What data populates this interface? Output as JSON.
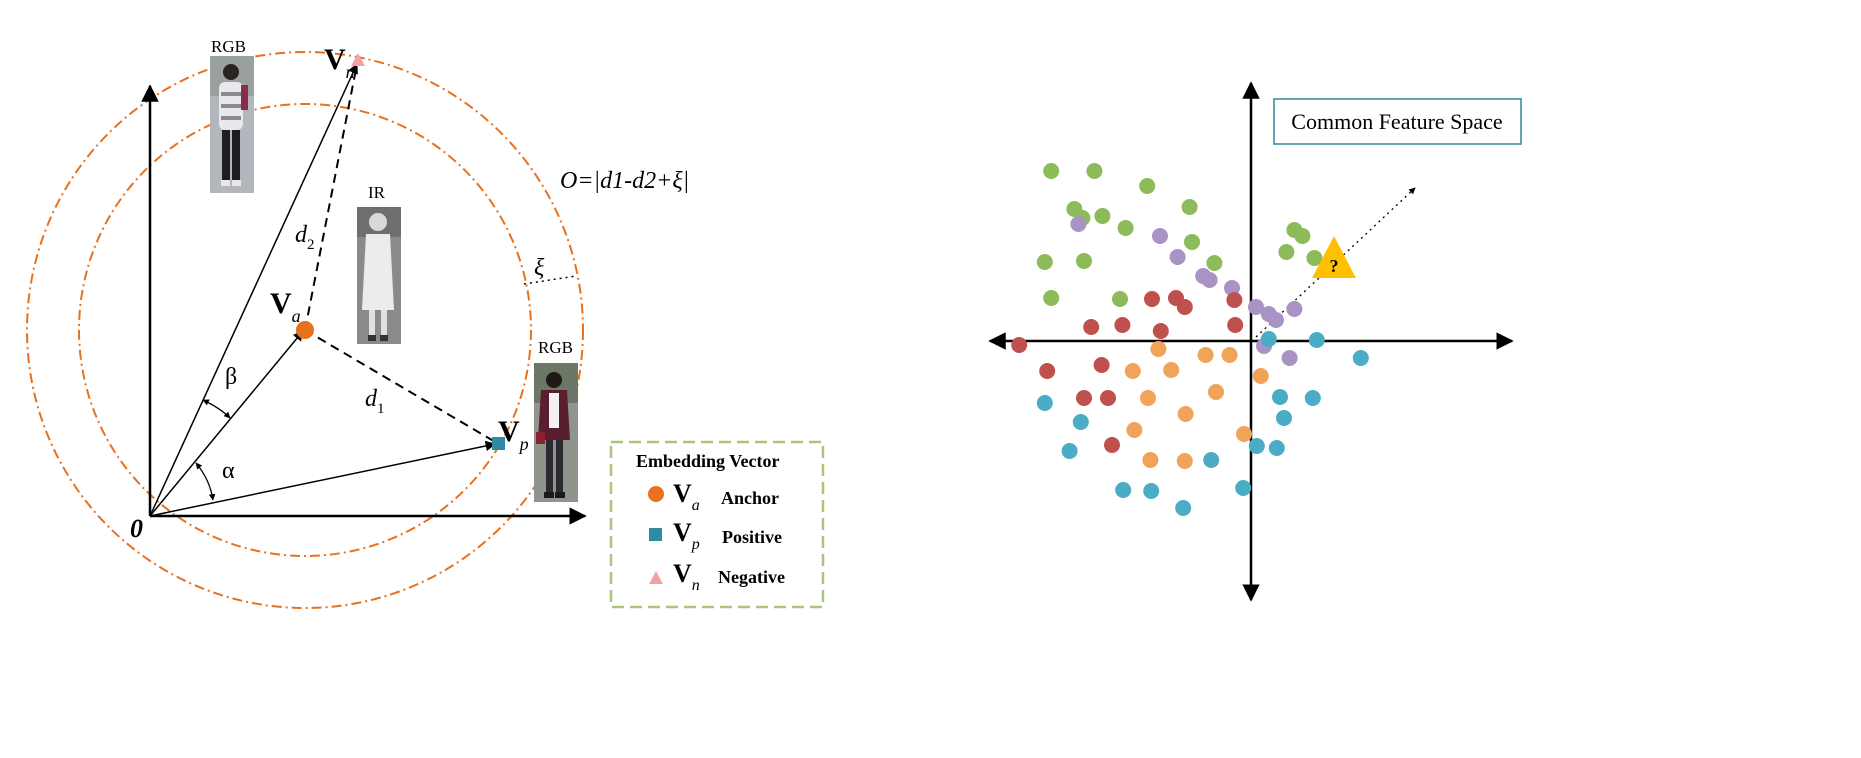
{
  "left_diagram": {
    "origin_label": "0",
    "angle_alpha": "α",
    "angle_beta": "β",
    "vec_anchor": {
      "main": "V",
      "sub": "a"
    },
    "vec_positive": {
      "main": "V",
      "sub": "p"
    },
    "vec_negative": {
      "main": "V",
      "sub": "n"
    },
    "dist_1": {
      "main": "d",
      "sub": "1"
    },
    "dist_2": {
      "main": "d",
      "sub": "2"
    },
    "margin_symbol": "ξ",
    "formula": "O=|d1-d2+ξ|",
    "photo_labels": {
      "rgb_top": "RGB",
      "ir": "IR",
      "rgb_right": "RGB"
    },
    "legend": {
      "title": "Embedding Vector",
      "items": [
        {
          "symbol": "V",
          "sub": "a",
          "label": "Anchor",
          "color": "#E8711E",
          "shape": "circle"
        },
        {
          "symbol": "V",
          "sub": "p",
          "label": "Positive",
          "color": "#2E8BA6",
          "shape": "square"
        },
        {
          "symbol": "V",
          "sub": "n",
          "label": "Negative",
          "color": "#F4A0A8",
          "shape": "triangle"
        }
      ]
    },
    "colors": {
      "circle": "#E8711E",
      "legend_border": "#A9C77A"
    }
  },
  "right_diagram": {
    "title": "Common Feature Space",
    "query_symbol": "?",
    "colors": {
      "green": "#8DBB5A",
      "purple": "#A893C4",
      "red": "#C0504D",
      "orange": "#F1A35A",
      "blue": "#4BACC6",
      "query": "#FFC000",
      "title_border": "#31859C"
    },
    "clusters": {
      "green": [
        [
          1314,
          171
        ],
        [
          1368,
          171
        ],
        [
          1434,
          186
        ],
        [
          1343,
          209
        ],
        [
          1378,
          216
        ],
        [
          1487,
          207
        ],
        [
          1353,
          218
        ],
        [
          1407,
          228
        ],
        [
          1490,
          242
        ],
        [
          1518,
          263
        ],
        [
          1306,
          262
        ],
        [
          1355,
          261
        ],
        [
          1314,
          298
        ],
        [
          1400,
          299
        ],
        [
          1628,
          236
        ],
        [
          1608,
          252
        ],
        [
          1643,
          258
        ],
        [
          1618,
          230
        ]
      ],
      "purple": [
        [
          1348,
          224
        ],
        [
          1450,
          236
        ],
        [
          1472,
          257
        ],
        [
          1504,
          276
        ],
        [
          1512,
          280
        ],
        [
          1540,
          288
        ],
        [
          1570,
          307
        ],
        [
          1586,
          314
        ],
        [
          1618,
          309
        ],
        [
          1595,
          320
        ],
        [
          1580,
          346
        ],
        [
          1612,
          358
        ]
      ],
      "red": [
        [
          1364,
          327
        ],
        [
          1403,
          325
        ],
        [
          1440,
          299
        ],
        [
          1470,
          298
        ],
        [
          1481,
          307
        ],
        [
          1451,
          331
        ],
        [
          1543,
          300
        ],
        [
          1544,
          325
        ],
        [
          1274,
          345
        ],
        [
          1309,
          371
        ],
        [
          1377,
          365
        ],
        [
          1355,
          398
        ],
        [
          1385,
          398
        ],
        [
          1390,
          445
        ]
      ],
      "orange": [
        [
          1448,
          349
        ],
        [
          1416,
          371
        ],
        [
          1464,
          370
        ],
        [
          1507,
          355
        ],
        [
          1537,
          355
        ],
        [
          1576,
          376
        ],
        [
          1520,
          392
        ],
        [
          1435,
          398
        ],
        [
          1482,
          414
        ],
        [
          1418,
          430
        ],
        [
          1555,
          434
        ],
        [
          1438,
          460
        ],
        [
          1481,
          461
        ]
      ],
      "blue": [
        [
          1306,
          403
        ],
        [
          1351,
          422
        ],
        [
          1337,
          451
        ],
        [
          1600,
          397
        ],
        [
          1641,
          398
        ],
        [
          1605,
          418
        ],
        [
          1571,
          446
        ],
        [
          1596,
          448
        ],
        [
          1514,
          460
        ],
        [
          1404,
          490
        ],
        [
          1439,
          491
        ],
        [
          1554,
          488
        ],
        [
          1479,
          508
        ],
        [
          1646,
          340
        ],
        [
          1701,
          358
        ],
        [
          1586,
          339
        ]
      ]
    },
    "query_position": [
      1588,
      263
    ]
  }
}
